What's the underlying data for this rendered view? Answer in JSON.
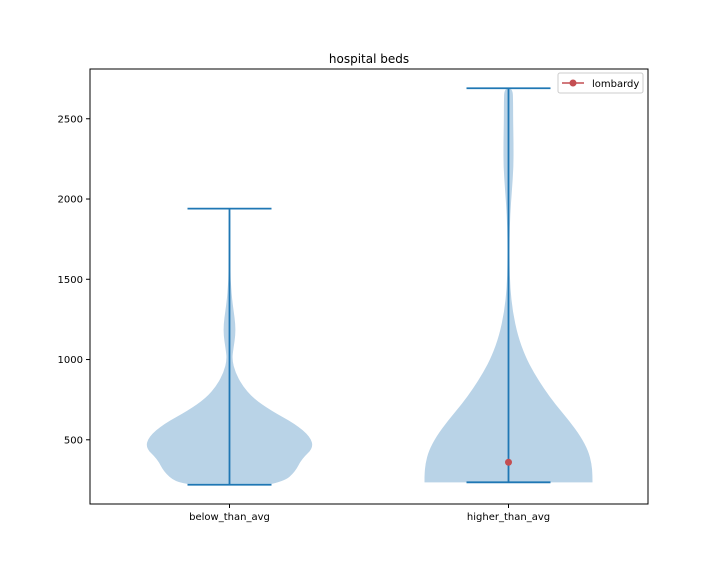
{
  "chart_data": {
    "type": "violin",
    "title": "hospital beds",
    "xlabel": "",
    "ylabel": "",
    "categories": [
      "below_than_avg",
      "higher_than_avg"
    ],
    "ylim": [
      100,
      2810
    ],
    "yticks": [
      500,
      1000,
      1500,
      2000,
      2500
    ],
    "grid": false,
    "legend": {
      "placement": "top-right",
      "entries": [
        "lombardy"
      ]
    },
    "colors": {
      "body": "#b9d3e7",
      "line": "#1f77b4",
      "marker": "#c44e52",
      "marker_edge": "#c44e52"
    },
    "violins": [
      {
        "category": "below_than_avg",
        "min": 220,
        "max": 1940,
        "density_y": [
          220,
          240,
          300,
          380,
          450,
          520,
          600,
          680,
          760,
          840,
          920,
          1000,
          1080,
          1150,
          1220,
          1300,
          1380,
          1450,
          1520,
          1700,
          1940
        ],
        "density_w": [
          0.45,
          0.65,
          0.78,
          0.86,
          1.0,
          0.96,
          0.78,
          0.5,
          0.28,
          0.15,
          0.07,
          0.03,
          0.05,
          0.07,
          0.07,
          0.05,
          0.03,
          0.02,
          0.012,
          0.01,
          0.01
        ]
      },
      {
        "category": "higher_than_avg",
        "min": 235,
        "max": 2690,
        "density_y": [
          235,
          280,
          350,
          430,
          520,
          620,
          720,
          820,
          920,
          1020,
          1150,
          1300,
          1450,
          1600,
          1750,
          1900,
          2050,
          2200,
          2350,
          2500,
          2600,
          2690
        ],
        "density_w": [
          1.0,
          1.0,
          0.99,
          0.95,
          0.86,
          0.72,
          0.56,
          0.42,
          0.3,
          0.2,
          0.11,
          0.05,
          0.02,
          0.012,
          0.012,
          0.02,
          0.04,
          0.06,
          0.06,
          0.055,
          0.055,
          0.05
        ]
      }
    ],
    "points": [
      {
        "series": "lombardy",
        "category": "higher_than_avg",
        "y": 360
      }
    ]
  }
}
